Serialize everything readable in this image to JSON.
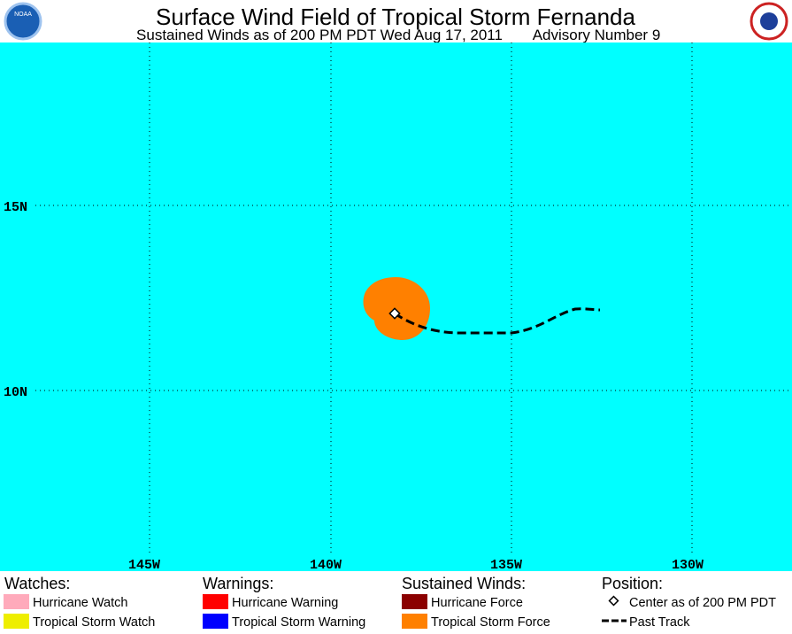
{
  "header": {
    "title": "Surface Wind Field of Tropical Storm Fernanda",
    "subtitle": "Sustained Winds as of 200 PM PDT Wed Aug 17, 2011",
    "advisory": "Advisory Number 9",
    "left_logo": "NOAA"
  },
  "map": {
    "lat_labels": [
      "15N",
      "10N"
    ],
    "lon_labels": [
      "145W",
      "140W",
      "135W",
      "130W"
    ]
  },
  "legend": {
    "watches": {
      "heading": "Watches:",
      "items": [
        "Hurricane Watch",
        "Tropical Storm Watch"
      ]
    },
    "warnings": {
      "heading": "Warnings:",
      "items": [
        "Hurricane Warning",
        "Tropical Storm Warning"
      ]
    },
    "winds": {
      "heading": "Sustained Winds:",
      "items": [
        "Hurricane Force",
        "Tropical Storm Force"
      ]
    },
    "position": {
      "heading": "Position:",
      "items": [
        "Center as of 200 PM PDT",
        "Past Track"
      ]
    }
  }
}
